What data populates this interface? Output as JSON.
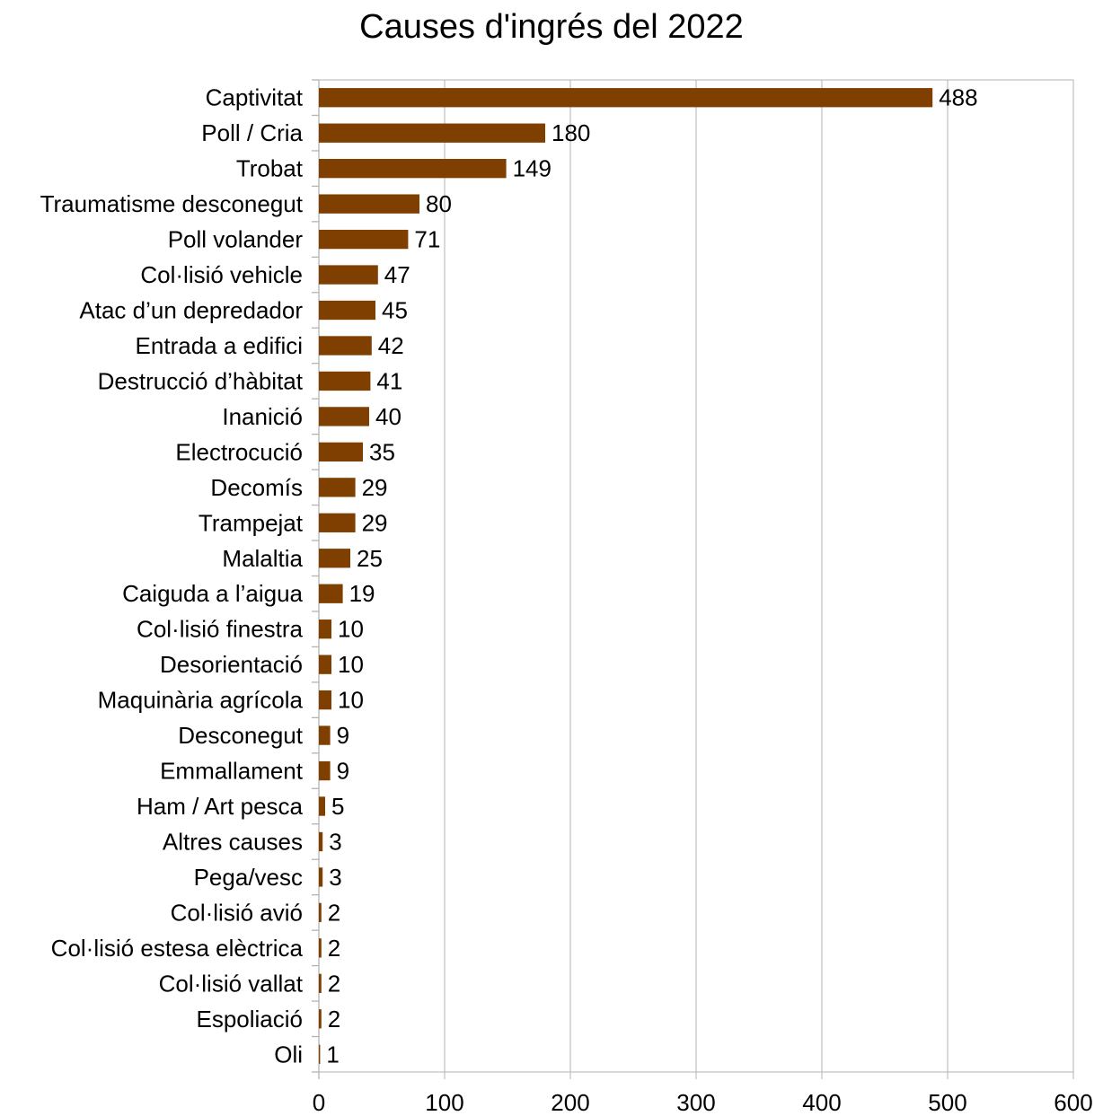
{
  "chart_data": {
    "type": "bar",
    "orientation": "horizontal",
    "title": "Causes d'ingrés del 2022",
    "xlabel": "",
    "ylabel": "",
    "xlim": [
      0,
      600
    ],
    "xticks": [
      0,
      100,
      200,
      300,
      400,
      500,
      600
    ],
    "grid": true,
    "legend": "none",
    "bar_color": "#7f3f00",
    "categories": [
      "Captivitat",
      "Poll / Cria",
      "Trobat",
      "Traumatisme desconegut",
      "Poll volander",
      "Col·lisió vehicle",
      "Atac d’un depredador",
      "Entrada a edifici",
      "Destrucció d’hàbitat",
      "Inanició",
      "Electrocució",
      "Decomís",
      "Trampejat",
      "Malaltia",
      "Caiguda a l’aigua",
      "Col·lisió finestra",
      "Desorientació",
      "Maquinària agrícola",
      "Desconegut",
      "Emmallament",
      "Ham / Art pesca",
      "Altres causes",
      "Pega/vesc",
      "Col·lisió avió",
      "Col·lisió estesa elèctrica",
      "Col·lisió vallat",
      "Espoliació",
      "Oli"
    ],
    "values": [
      488,
      180,
      149,
      80,
      71,
      47,
      45,
      42,
      41,
      40,
      35,
      29,
      29,
      25,
      19,
      10,
      10,
      10,
      9,
      9,
      5,
      3,
      3,
      2,
      2,
      2,
      2,
      1
    ]
  }
}
